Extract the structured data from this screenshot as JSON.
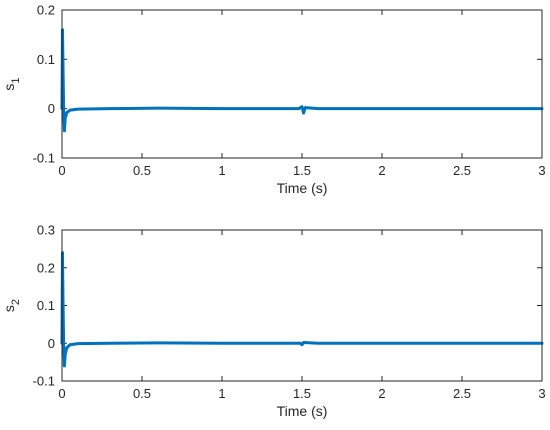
{
  "chart_data": [
    {
      "type": "line",
      "xlabel": "Time (s)",
      "ylabel": "s",
      "ylabel_sub": "1",
      "xlim": [
        0,
        3
      ],
      "ylim": [
        -0.1,
        0.2
      ],
      "xticks": [
        0,
        0.5,
        1,
        1.5,
        2,
        2.5,
        3
      ],
      "xtick_labels": [
        "0",
        "0.5",
        "1",
        "1.5",
        "2",
        "2.5",
        "3"
      ],
      "yticks": [
        -0.1,
        0,
        0.1,
        0.2
      ],
      "ytick_labels": [
        "-0.1",
        "0",
        "0.1",
        "0.2"
      ],
      "grid": false,
      "line_color": "#0072BD",
      "series": [
        {
          "x": [
            0,
            0.003,
            0.006,
            0.01,
            0.015,
            0.02,
            0.03,
            0.05,
            0.1,
            0.3,
            0.6,
            1.0,
            1.48,
            1.5,
            1.51,
            1.52,
            1.6,
            2.0,
            2.5,
            3.0
          ],
          "y": [
            0.0,
            0.16,
            0.09,
            0.0,
            -0.045,
            -0.02,
            -0.008,
            -0.003,
            -0.001,
            0.0,
            0.001,
            0.0,
            0.0,
            0.004,
            -0.009,
            0.002,
            0.0,
            0.0,
            0.0,
            0.0
          ]
        }
      ]
    },
    {
      "type": "line",
      "xlabel": "Time (s)",
      "ylabel": "s",
      "ylabel_sub": "2",
      "xlim": [
        0,
        3
      ],
      "ylim": [
        -0.1,
        0.3
      ],
      "xticks": [
        0,
        0.5,
        1,
        1.5,
        2,
        2.5,
        3
      ],
      "xtick_labels": [
        "0",
        "0.5",
        "1",
        "1.5",
        "2",
        "2.5",
        "3"
      ],
      "yticks": [
        -0.1,
        0,
        0.1,
        0.2,
        0.3
      ],
      "ytick_labels": [
        "-0.1",
        "0",
        "0.1",
        "0.2",
        "0.3"
      ],
      "grid": false,
      "line_color": "#0072BD",
      "series": [
        {
          "x": [
            0,
            0.003,
            0.006,
            0.01,
            0.015,
            0.02,
            0.03,
            0.05,
            0.1,
            0.3,
            0.6,
            1.0,
            1.49,
            1.5,
            1.51,
            1.6,
            2.0,
            2.5,
            3.0
          ],
          "y": [
            0.0,
            0.24,
            0.12,
            0.0,
            -0.06,
            -0.03,
            -0.012,
            -0.004,
            -0.001,
            0.0,
            0.001,
            0.0,
            0.0,
            -0.004,
            0.002,
            0.0,
            0.0,
            0.0,
            0.0
          ]
        }
      ]
    }
  ]
}
